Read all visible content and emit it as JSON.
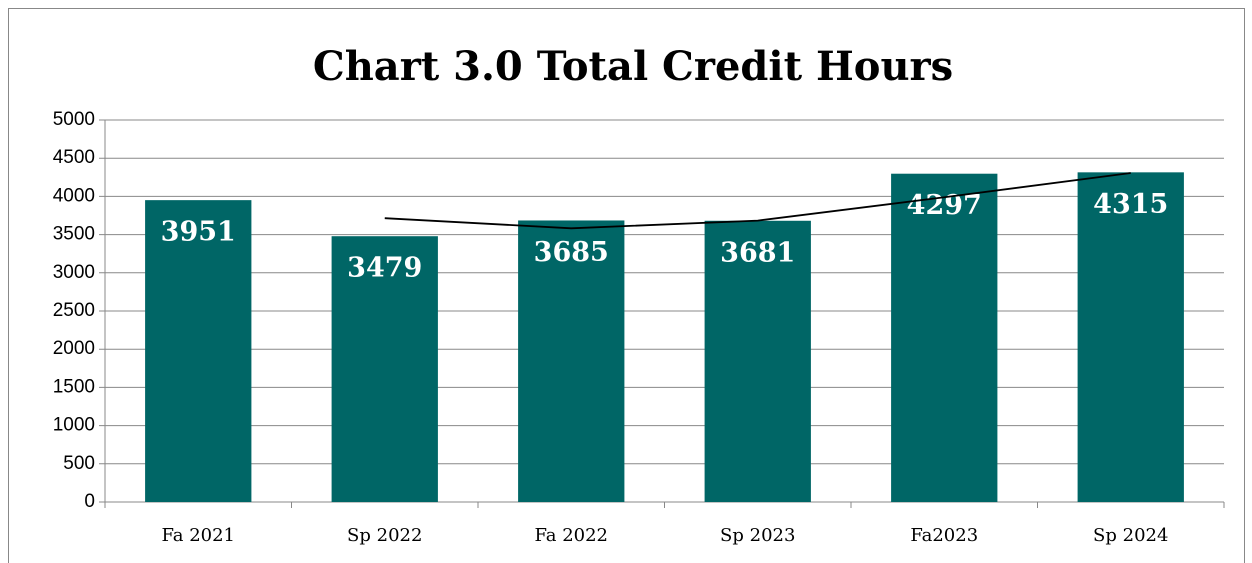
{
  "chart_data": {
    "type": "bar",
    "title": "Chart 3.0 Total Credit Hours",
    "categories": [
      "Fa 2021",
      "Sp 2022",
      "Fa 2022",
      "Sp 2023",
      "Fa2023",
      "Sp 2024"
    ],
    "values": [
      3951,
      3479,
      3685,
      3681,
      4297,
      4315
    ],
    "color": "#006666",
    "trendline": {
      "values": [
        null,
        3715,
        3582,
        3683,
        3989,
        4306
      ],
      "color": "#000000"
    },
    "ylim": [
      0,
      5000
    ],
    "yticks": [
      0,
      500,
      1000,
      1500,
      2000,
      2500,
      3000,
      3500,
      4000,
      4500,
      5000
    ],
    "grid": true
  }
}
